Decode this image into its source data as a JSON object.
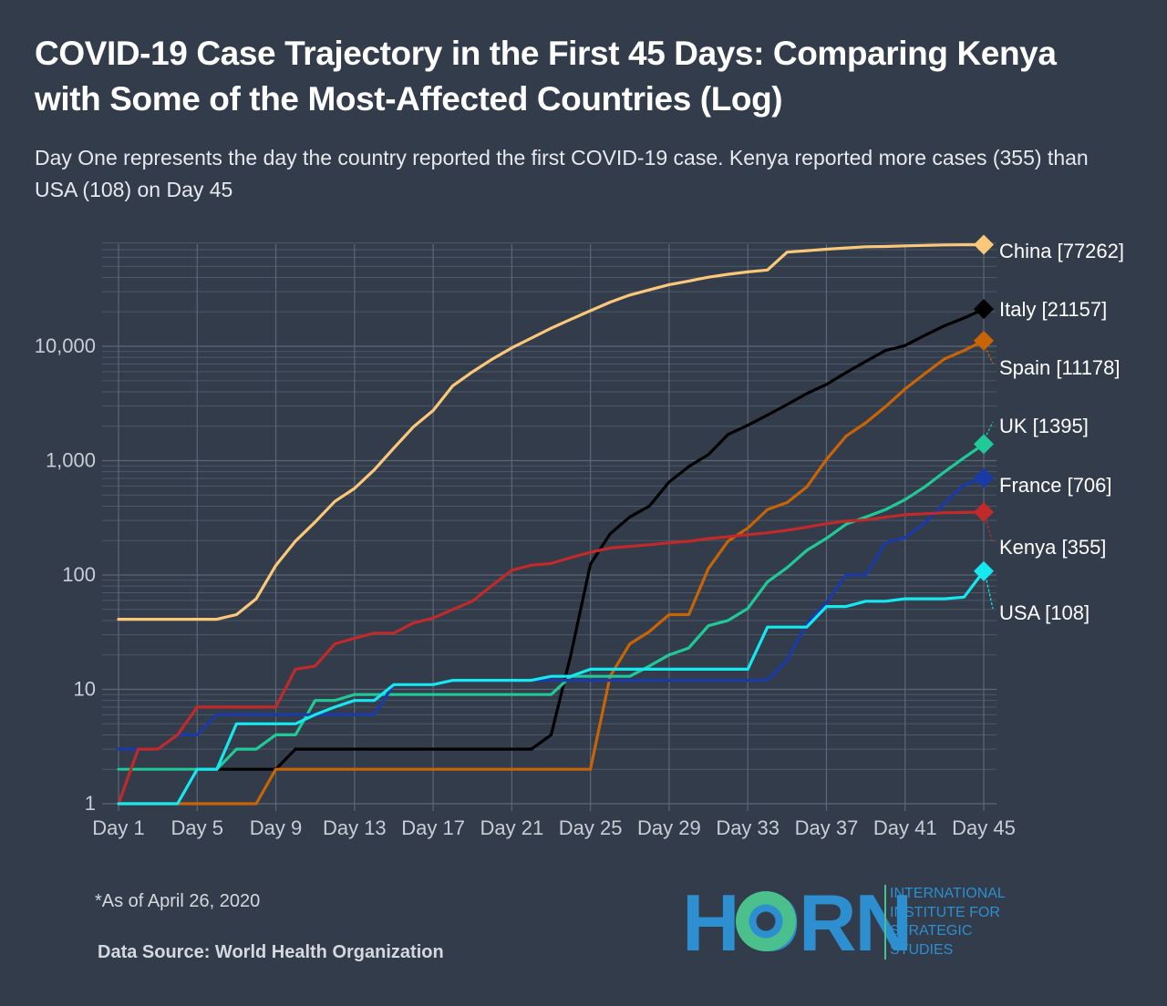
{
  "header": {
    "title": "COVID-19 Case Trajectory in the First 45 Days: Comparing Kenya with Some of the Most-Affected Countries (Log)",
    "subtitle": "Day One represents the day the country reported the first COVID-19 case. Kenya reported more cases (355) than USA (108) on Day 45"
  },
  "footer": {
    "note": "*As of April 26, 2020",
    "source": "Data Source: World Health Organization"
  },
  "logo": {
    "word": "HORN",
    "lines": [
      "INTERNATIONAL",
      "INSTITUTE FOR",
      "STRATEGIC",
      "STUDIES"
    ],
    "colors": {
      "blue": "#2d8fcf",
      "green": "#4cc08c"
    }
  },
  "chart_data": {
    "type": "line",
    "yscale": "log",
    "ylim": [
      1,
      80000
    ],
    "xlim": [
      1,
      45
    ],
    "grid": true,
    "legend": "direct labels at line ends (right)",
    "ytick_values": [
      1,
      10,
      100,
      1000,
      10000
    ],
    "ytick_labels": [
      "1",
      "10",
      "100",
      "1,000",
      "10,000"
    ],
    "xtick_values": [
      1,
      5,
      9,
      13,
      17,
      21,
      25,
      29,
      33,
      37,
      41,
      45
    ],
    "xtick_labels": [
      "Day 1",
      "Day 5",
      "Day 9",
      "Day 13",
      "Day 17",
      "Day 21",
      "Day 25",
      "Day 29",
      "Day 33",
      "Day 37",
      "Day 41",
      "Day 45"
    ],
    "x": [
      1,
      2,
      3,
      4,
      5,
      6,
      7,
      8,
      9,
      10,
      11,
      12,
      13,
      14,
      15,
      16,
      17,
      18,
      19,
      20,
      21,
      22,
      23,
      24,
      25,
      26,
      27,
      28,
      29,
      30,
      31,
      32,
      33,
      34,
      35,
      36,
      37,
      38,
      39,
      40,
      41,
      42,
      43,
      44,
      45
    ],
    "series": [
      {
        "name": "China",
        "label": "China [77262]",
        "color": "#fbc879",
        "values": [
          41,
          41,
          41,
          41,
          41,
          41,
          45,
          62,
          121,
          198,
          291,
          440,
          571,
          830,
          1287,
          1975,
          2744,
          4515,
          5974,
          7711,
          9692,
          11791,
          14380,
          17205,
          20438,
          24324,
          28018,
          31161,
          34546,
          37198,
          40171,
          42638,
          44653,
          46472,
          66492,
          68500,
          70548,
          72436,
          74185,
          74576,
          75465,
          76288,
          76936,
          77150,
          77262
        ]
      },
      {
        "name": "Italy",
        "label": "Italy [21157]",
        "color": "#000000",
        "values": [
          2,
          2,
          2,
          2,
          2,
          2,
          2,
          2,
          2,
          3,
          3,
          3,
          3,
          3,
          3,
          3,
          3,
          3,
          3,
          3,
          3,
          3,
          4,
          20,
          124,
          229,
          322,
          400,
          650,
          888,
          1128,
          1694,
          2036,
          2502,
          3089,
          3858,
          4636,
          5883,
          7375,
          9172,
          10149,
          12462,
          15113,
          17660,
          21157
        ]
      },
      {
        "name": "Spain",
        "label": "Spain [11178]",
        "color": "#c86406",
        "values": [
          1,
          1,
          1,
          1,
          1,
          1,
          1,
          1,
          2,
          2,
          2,
          2,
          2,
          2,
          2,
          2,
          2,
          2,
          2,
          2,
          2,
          2,
          2,
          2,
          2,
          13,
          25,
          32,
          45,
          45,
          114,
          198,
          257,
          374,
          430,
          589,
          1024,
          1639,
          2140,
          2965,
          4231,
          5753,
          7753,
          9191,
          11178
        ]
      },
      {
        "name": "UK",
        "label": "UK [1395]",
        "color": "#20c997",
        "values": [
          2,
          2,
          2,
          2,
          2,
          2,
          3,
          3,
          4,
          4,
          8,
          8,
          9,
          9,
          9,
          9,
          9,
          9,
          9,
          9,
          9,
          9,
          9,
          13,
          13,
          13,
          13,
          16,
          20,
          23,
          36,
          40,
          51,
          87,
          116,
          164,
          209,
          278,
          321,
          373,
          456,
          590,
          797,
          1061,
          1395
        ]
      },
      {
        "name": "France",
        "label": "France [706]",
        "color": "#1a3aa8",
        "values": [
          3,
          3,
          3,
          4,
          4,
          6,
          6,
          6,
          6,
          6,
          6,
          6,
          6,
          6,
          11,
          11,
          11,
          12,
          12,
          12,
          12,
          12,
          12,
          12,
          12,
          12,
          12,
          12,
          12,
          12,
          12,
          12,
          12,
          12,
          18,
          38,
          57,
          100,
          100,
          191,
          212,
          285,
          423,
          613,
          706
        ]
      },
      {
        "name": "Kenya",
        "label": "Kenya [355]",
        "color": "#c02a2a",
        "values": [
          1,
          3,
          3,
          4,
          7,
          7,
          7,
          7,
          7,
          15,
          16,
          25,
          28,
          31,
          31,
          38,
          42,
          50,
          59,
          81,
          110,
          122,
          126,
          142,
          158,
          172,
          178,
          184,
          191,
          197,
          208,
          216,
          225,
          234,
          246,
          262,
          281,
          296,
          303,
          320,
          336,
          343,
          350,
          352,
          355
        ]
      },
      {
        "name": "USA",
        "label": "USA [108]",
        "color": "#16e8f0",
        "values": [
          1,
          1,
          1,
          1,
          2,
          2,
          5,
          5,
          5,
          5,
          6,
          7,
          8,
          8,
          11,
          11,
          11,
          12,
          12,
          12,
          12,
          12,
          13,
          13,
          15,
          15,
          15,
          15,
          15,
          15,
          15,
          15,
          15,
          35,
          35,
          35,
          53,
          53,
          59,
          59,
          62,
          62,
          62,
          64,
          108
        ]
      }
    ]
  }
}
